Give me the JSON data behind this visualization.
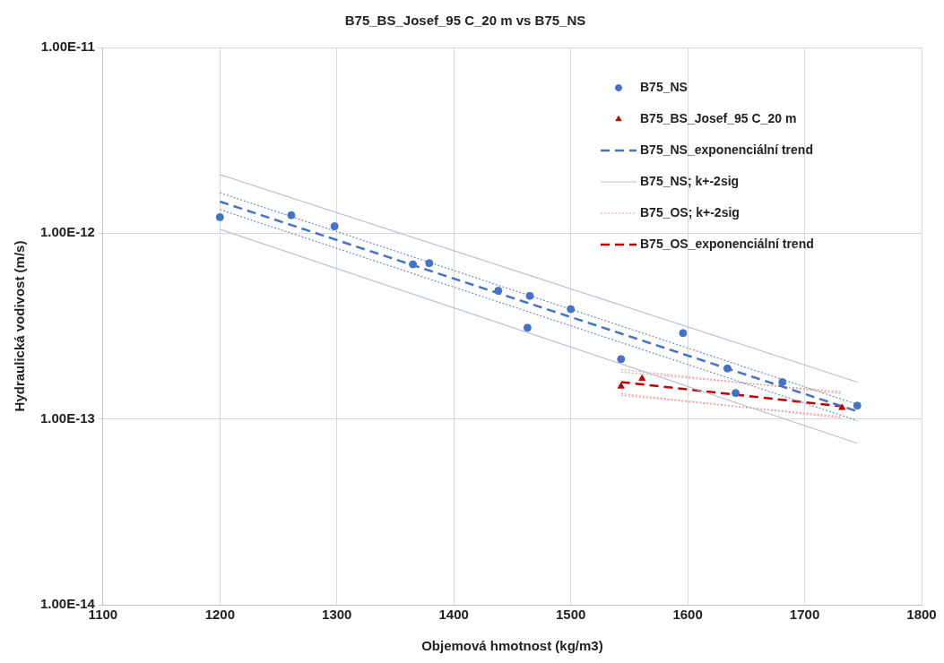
{
  "chart_data": {
    "type": "scatter",
    "title": "B75_BS_Josef_95 C_20 m vs B75_NS",
    "xlabel": "Objemová hmotnost (kg/m3)",
    "ylabel": "Hydraulická vodivost (m/s)",
    "log": "y",
    "grid": true,
    "legend": "top right",
    "xlim": [
      1100,
      1800
    ],
    "xticks": [
      1100,
      1200,
      1300,
      1400,
      1500,
      1600,
      1700,
      1800
    ],
    "ylim": [
      1e-14,
      1e-11
    ],
    "yticks": [
      {
        "value": 1e-14,
        "label": "1.00E-14"
      },
      {
        "value": 1e-13,
        "label": "1.00E-13"
      },
      {
        "value": 1e-12,
        "label": "1.00E-12"
      },
      {
        "value": 1e-11,
        "label": "1.00E-11"
      }
    ],
    "series": [
      {
        "name": "B75_NS",
        "marker": "circle",
        "color": "#4472c4",
        "x": [
          1200,
          1261,
          1298,
          1365,
          1379,
          1438,
          1465,
          1463,
          1500,
          1596,
          1543,
          1634,
          1641,
          1681,
          1745
        ],
        "values": [
          1.22e-12,
          1.25e-12,
          1.09e-12,
          6.8e-13,
          6.9e-13,
          4.9e-13,
          4.6e-13,
          3.1e-13,
          3.9e-13,
          2.9e-13,
          2.1e-13,
          1.87e-13,
          1.38e-13,
          1.58e-13,
          1.18e-13
        ]
      },
      {
        "name": "B75_BS_Josef_95 C_20 m",
        "marker": "triangle",
        "color": "#c00000",
        "x": [
          1543,
          1561,
          1732
        ],
        "values": [
          1.5e-13,
          1.65e-13,
          1.15e-13
        ]
      },
      {
        "name": "B75_NS_exponenciální trend",
        "type": "line",
        "marker": "none",
        "line_style": "dashed",
        "color": "#4472c4",
        "x": [
          1200,
          1745
        ],
        "values": [
          1.48e-12,
          1.1e-13
        ]
      },
      {
        "name": "B75_NS; k+-2sig",
        "type": "line",
        "marker": "none",
        "line_style": "solid",
        "color": "#b4c0dc",
        "x": [
          1200,
          1745
        ],
        "values": [
          2.07e-12,
          1.58e-13
        ]
      },
      {
        "type": "line",
        "marker": "none",
        "line_style": "solid",
        "color": "#b4c0dc",
        "x": [
          1200,
          1745
        ],
        "values": [
          1.05e-12,
          7.4e-14
        ]
      },
      {
        "type": "line",
        "marker": "none",
        "line_style": "dotted",
        "color": "#6f8fcf",
        "x": [
          1200,
          1745
        ],
        "values": [
          1.65e-12,
          1.2e-13
        ]
      },
      {
        "type": "line",
        "marker": "none",
        "line_style": "dotted",
        "color": "#6f8fcf",
        "x": [
          1200,
          1745
        ],
        "values": [
          1.34e-12,
          9.8e-14
        ]
      },
      {
        "name": "B75_OS; k+-2sig",
        "type": "line",
        "marker": "none",
        "line_style": "dotted",
        "color": "#e8a0a0",
        "x": [
          1543,
          1732
        ],
        "values": [
          1.85e-13,
          1.37e-13
        ]
      },
      {
        "type": "line",
        "marker": "none",
        "line_style": "dotted",
        "color": "#e8a0a0",
        "x": [
          1543,
          1732
        ],
        "values": [
          1.79e-13,
          1.4e-13
        ]
      },
      {
        "type": "line",
        "marker": "none",
        "line_style": "dotted",
        "color": "#e8a0a0",
        "x": [
          1543,
          1732
        ],
        "values": [
          1.37e-13,
          1.01e-13
        ]
      },
      {
        "type": "line",
        "marker": "none",
        "line_style": "dotted",
        "color": "#e8a0a0",
        "x": [
          1543,
          1732
        ],
        "values": [
          1.34e-13,
          1.03e-13
        ]
      },
      {
        "name": "B75_OS_exponenciální trend",
        "type": "line",
        "marker": "none",
        "line_style": "dashed",
        "color": "#c00000",
        "x": [
          1543,
          1732
        ],
        "values": [
          1.58e-13,
          1.17e-13
        ]
      }
    ]
  }
}
